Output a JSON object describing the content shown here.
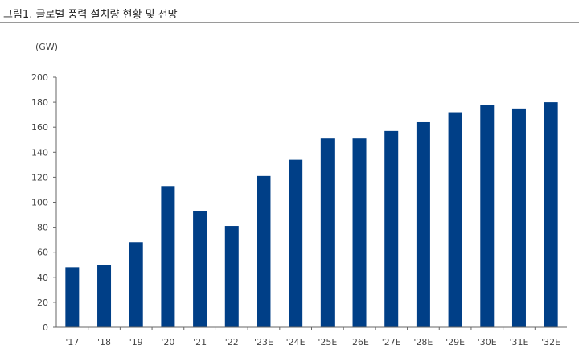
{
  "figure": {
    "title": "그림1.  글로벌 풍력 설치량 현황 및 전망"
  },
  "chart_data": {
    "type": "bar",
    "title": "그림1.  글로벌 풍력 설치량 현황 및 전망",
    "ylabel": "(GW)",
    "xlabel": "",
    "ylim": [
      0,
      200
    ],
    "yticks": [
      0,
      20,
      40,
      60,
      80,
      100,
      120,
      140,
      160,
      180,
      200
    ],
    "grid": false,
    "bar_color": "#003f87",
    "categories": [
      "'17",
      "'18",
      "'19",
      "'20",
      "'21",
      "'22",
      "'23E",
      "'24E",
      "'25E",
      "'26E",
      "'27E",
      "'28E",
      "'29E",
      "'30E",
      "'31E",
      "'32E"
    ],
    "values": [
      48,
      50,
      68,
      113,
      93,
      81,
      121,
      134,
      151,
      151,
      157,
      164,
      172,
      178,
      175,
      180
    ]
  }
}
